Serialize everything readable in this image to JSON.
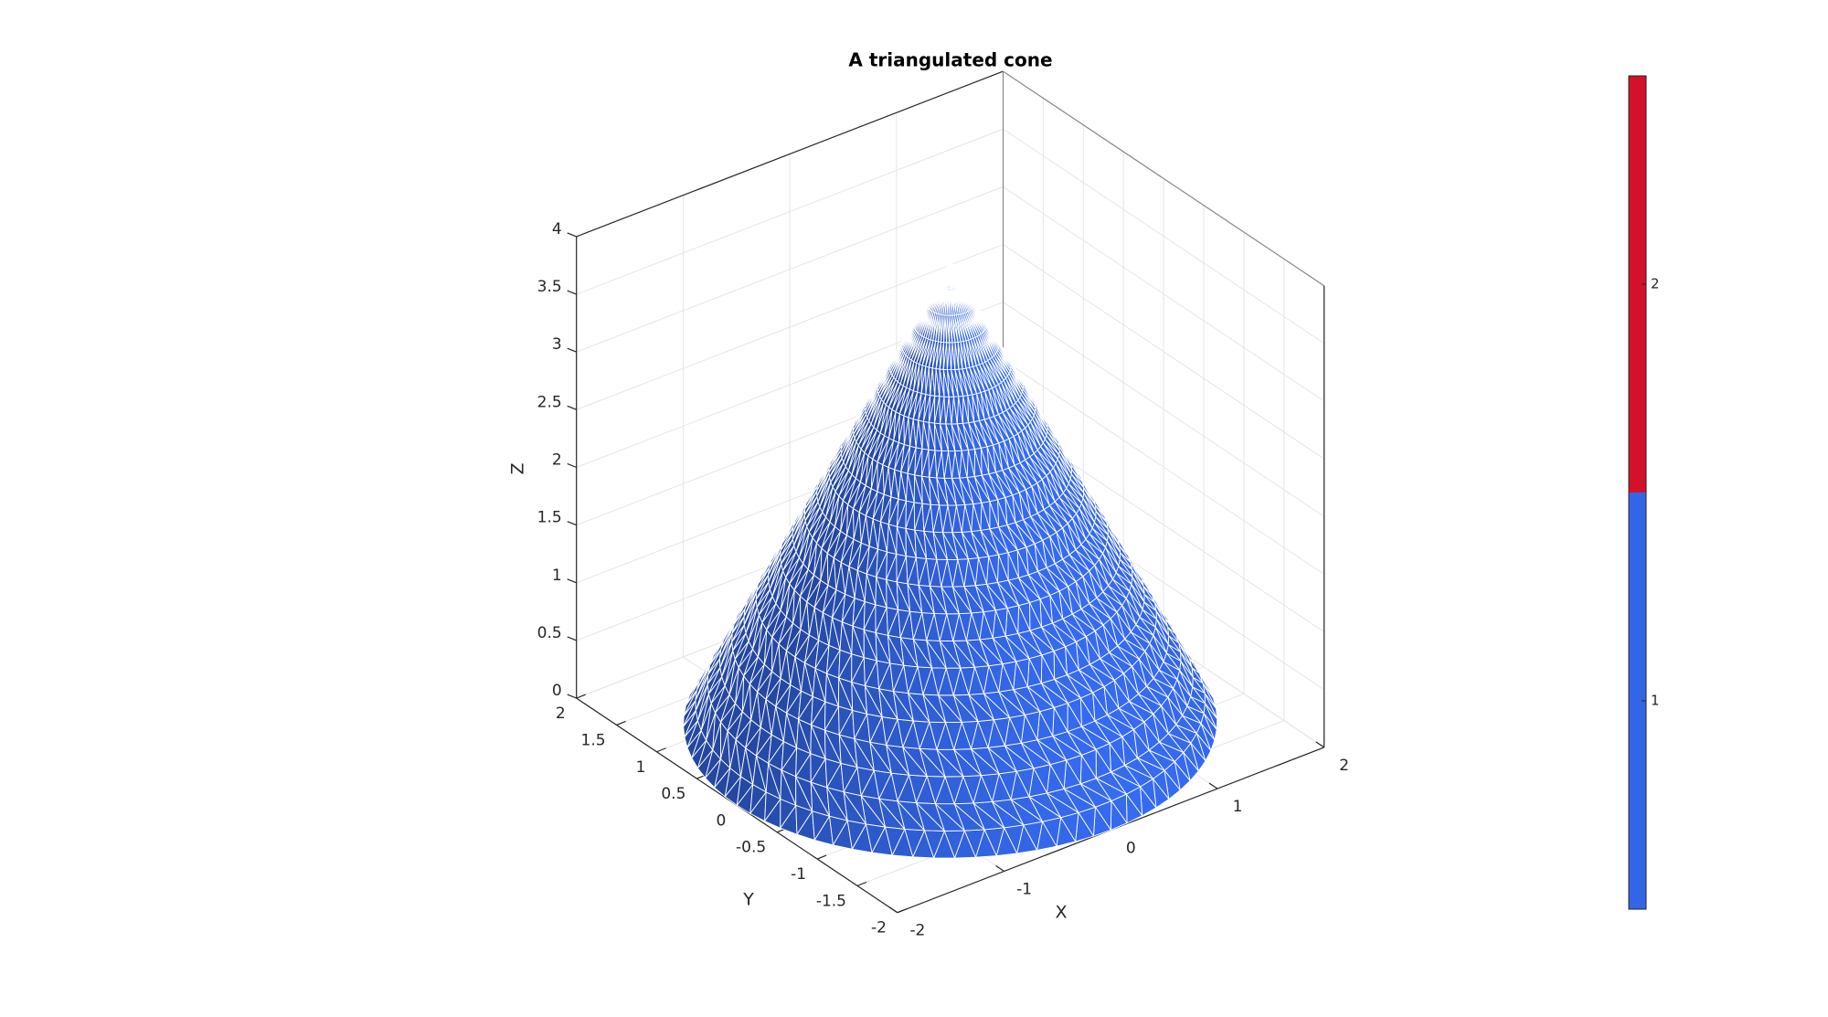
{
  "chart_data": {
    "type": "surface3d",
    "title": "A triangulated cone",
    "xlabel": "X",
    "ylabel": "Y",
    "zlabel": "Z",
    "xlim": [
      -2,
      2
    ],
    "ylim": [
      -2,
      2
    ],
    "zlim": [
      0,
      4
    ],
    "xticks": [
      -2,
      -1,
      0,
      1,
      2
    ],
    "yticks": [
      -2,
      -1.5,
      -1,
      -0.5,
      0,
      0.5,
      1,
      1.5,
      2
    ],
    "zticks": [
      0,
      0.5,
      1,
      1.5,
      2,
      2.5,
      3,
      3.5,
      4
    ],
    "grid": true,
    "color": "#3366e6",
    "edgecolor": "#ffffff",
    "surface": {
      "shape": "cone",
      "radius": 2,
      "height": 4
    },
    "colorbar": {
      "clim": [
        0.5,
        2.5
      ],
      "ticks": [
        1,
        2
      ],
      "colors": [
        "#3366e6",
        "#d4112b"
      ]
    }
  }
}
